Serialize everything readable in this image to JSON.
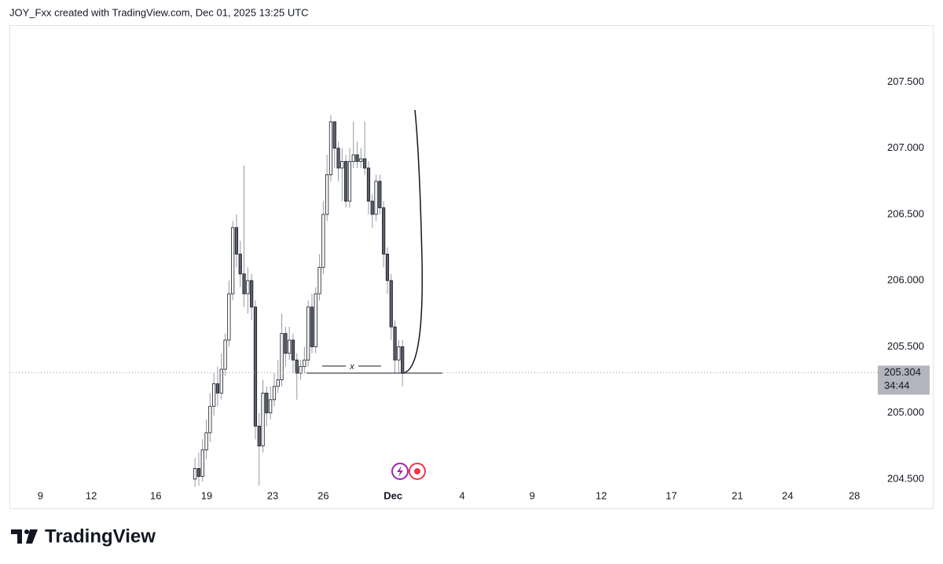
{
  "header": "JOY_Fxx created with TradingView.com, Dec 01, 2025 13:25 UTC",
  "logo": "TradingView",
  "chart_data": {
    "type": "candlestick",
    "x": [
      0,
      1,
      2,
      3,
      4,
      5,
      6,
      7,
      8,
      9,
      10,
      11,
      12,
      13,
      14,
      15,
      16,
      17,
      18,
      19,
      20,
      21,
      22,
      23,
      24,
      25,
      26,
      27,
      28,
      29,
      30,
      31,
      32,
      33,
      34,
      35,
      36,
      37,
      38,
      39,
      40,
      41,
      42,
      43,
      44,
      45,
      46,
      47,
      48,
      49,
      50,
      51,
      52,
      53,
      54,
      55
    ],
    "open": [
      204.5,
      204.58,
      204.52,
      204.72,
      204.85,
      205.05,
      205.22,
      205.15,
      205.33,
      205.55,
      205.9,
      206.4,
      206.2,
      206.05,
      205.9,
      206.0,
      205.8,
      204.9,
      204.75,
      205.15,
      205.0,
      205.1,
      205.2,
      205.25,
      205.6,
      205.45,
      205.55,
      205.4,
      205.3,
      205.35,
      205.4,
      205.8,
      205.5,
      205.9,
      206.1,
      206.5,
      206.8,
      207.2,
      207.0,
      206.85,
      206.9,
      206.6,
      206.9,
      206.95,
      206.9,
      206.92,
      206.85,
      206.6,
      206.5,
      206.75,
      206.55,
      206.2,
      206.0,
      205.65,
      205.4,
      205.5
    ],
    "high": [
      204.66,
      204.7,
      204.8,
      204.95,
      205.15,
      205.3,
      205.35,
      205.45,
      205.6,
      206.0,
      206.45,
      206.5,
      206.3,
      206.87,
      206.1,
      206.05,
      205.85,
      205.0,
      205.25,
      205.2,
      205.2,
      205.3,
      205.4,
      205.75,
      205.65,
      205.65,
      205.6,
      205.45,
      205.4,
      205.5,
      205.85,
      205.9,
      205.95,
      206.2,
      206.6,
      206.95,
      207.25,
      207.2,
      207.05,
      207.0,
      206.95,
      207.0,
      207.2,
      207.05,
      207.0,
      207.2,
      206.9,
      206.65,
      206.8,
      206.8,
      206.6,
      206.25,
      206.05,
      205.7,
      205.55,
      205.55
    ],
    "low": [
      204.42,
      204.45,
      204.48,
      204.65,
      204.78,
      204.98,
      205.05,
      205.1,
      205.28,
      205.5,
      205.85,
      206.1,
      205.95,
      205.8,
      205.75,
      205.7,
      204.8,
      204.45,
      204.7,
      204.9,
      204.95,
      205.05,
      205.15,
      205.2,
      205.35,
      205.4,
      205.3,
      205.1,
      205.25,
      205.3,
      205.35,
      205.45,
      205.45,
      205.85,
      206.05,
      206.45,
      206.75,
      206.85,
      206.75,
      206.6,
      206.55,
      206.55,
      206.85,
      206.85,
      206.85,
      206.8,
      206.5,
      206.4,
      206.45,
      206.5,
      206.1,
      205.9,
      205.55,
      205.3,
      205.3,
      205.2
    ],
    "close": [
      204.58,
      204.52,
      204.72,
      204.85,
      205.05,
      205.22,
      205.15,
      205.33,
      205.55,
      205.9,
      206.4,
      206.2,
      206.05,
      205.9,
      206.0,
      205.8,
      204.9,
      204.75,
      205.15,
      205.0,
      205.1,
      205.2,
      205.25,
      205.6,
      205.45,
      205.55,
      205.4,
      205.3,
      205.35,
      205.4,
      205.8,
      205.5,
      205.9,
      206.1,
      206.5,
      206.8,
      207.2,
      207.0,
      206.85,
      206.9,
      206.6,
      206.9,
      206.95,
      206.9,
      206.92,
      206.85,
      206.6,
      206.5,
      206.75,
      206.55,
      206.2,
      206.0,
      205.65,
      205.4,
      205.5,
      205.304
    ],
    "up_color": "#ffffff",
    "down_color": "#5d606b",
    "border_color": "#131722",
    "wick_color": "#9598a1",
    "xlim": [
      -49.2,
      195.8
    ],
    "xticks": [
      {
        "value": -41,
        "label": "9"
      },
      {
        "value": -27.5,
        "label": "12"
      },
      {
        "value": -10.4,
        "label": "16"
      },
      {
        "value": 3.1,
        "label": "19"
      },
      {
        "value": 20.6,
        "label": "23"
      },
      {
        "value": 34,
        "label": "26"
      },
      {
        "value": 52.5,
        "label": "Dec"
      },
      {
        "value": 70.8,
        "label": "4"
      },
      {
        "value": 89.4,
        "label": "9"
      },
      {
        "value": 107.7,
        "label": "12"
      },
      {
        "value": 126.3,
        "label": "17"
      },
      {
        "value": 143.8,
        "label": "21"
      },
      {
        "value": 157.1,
        "label": "24"
      },
      {
        "value": 174.8,
        "label": "28"
      }
    ],
    "ylim": [
      204.44,
      207.93
    ],
    "yticks": [
      {
        "value": 204.5,
        "label": "204.500"
      },
      {
        "value": 205,
        "label": "205.000"
      },
      {
        "value": 205.5,
        "label": "205.500"
      },
      {
        "value": 206,
        "label": "206.000"
      },
      {
        "value": 206.5,
        "label": "206.500"
      },
      {
        "value": 207,
        "label": "207.000"
      },
      {
        "value": 207.5,
        "label": "207.500"
      }
    ],
    "last_price": 205.304,
    "last_price_label": "205.304",
    "countdown_label": "34:44",
    "annotation": "x"
  }
}
